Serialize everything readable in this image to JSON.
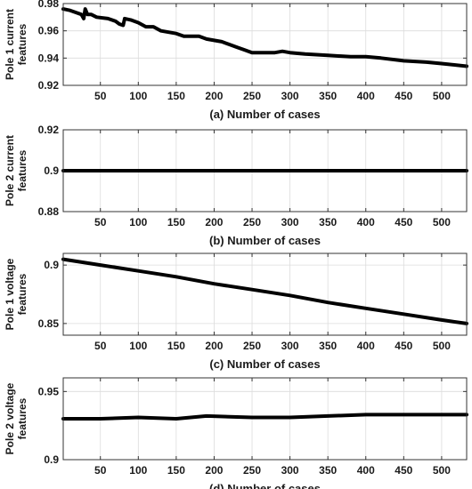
{
  "chart_data": [
    {
      "type": "line",
      "panel": "a",
      "xlabel": "(a) Number of cases",
      "ylabel": [
        "Pole 1 current",
        "features"
      ],
      "xlim": [
        1,
        533
      ],
      "ylim": [
        0.92,
        0.98
      ],
      "xticks": [
        50,
        100,
        150,
        200,
        250,
        300,
        350,
        400,
        450,
        500
      ],
      "yticks": [
        0.92,
        0.94,
        0.96,
        0.98
      ],
      "ytick_labels": [
        "0.92",
        "0.94",
        "0.96",
        "0.98"
      ],
      "grid": true,
      "series_color": "#000000",
      "x": [
        1,
        10,
        20,
        25,
        28,
        30,
        33,
        38,
        45,
        60,
        70,
        75,
        80,
        82,
        90,
        100,
        110,
        120,
        130,
        150,
        160,
        170,
        180,
        190,
        200,
        210,
        220,
        230,
        240,
        250,
        260,
        270,
        280,
        290,
        300,
        320,
        350,
        380,
        400,
        420,
        450,
        480,
        500,
        533
      ],
      "y": [
        0.976,
        0.975,
        0.973,
        0.972,
        0.969,
        0.976,
        0.972,
        0.972,
        0.97,
        0.969,
        0.967,
        0.965,
        0.964,
        0.969,
        0.968,
        0.966,
        0.963,
        0.963,
        0.96,
        0.958,
        0.956,
        0.956,
        0.956,
        0.954,
        0.953,
        0.952,
        0.95,
        0.948,
        0.946,
        0.944,
        0.944,
        0.944,
        0.944,
        0.945,
        0.944,
        0.943,
        0.942,
        0.941,
        0.941,
        0.94,
        0.938,
        0.937,
        0.936,
        0.934
      ]
    },
    {
      "type": "line",
      "panel": "b",
      "xlabel": "(b) Number of cases",
      "ylabel": [
        "Pole 2 current",
        "features"
      ],
      "xlim": [
        1,
        533
      ],
      "ylim": [
        0.88,
        0.92
      ],
      "xticks": [
        50,
        100,
        150,
        200,
        250,
        300,
        350,
        400,
        450,
        500
      ],
      "yticks": [
        0.88,
        0.9,
        0.92
      ],
      "ytick_labels": [
        "0.88",
        "0.9",
        "0.92"
      ],
      "grid": true,
      "series_color": "#000000",
      "x": [
        1,
        533
      ],
      "y": [
        0.9,
        0.9
      ]
    },
    {
      "type": "line",
      "panel": "c",
      "xlabel": "(c) Number of cases",
      "ylabel": [
        "Pole 1 voltage",
        "features"
      ],
      "xlim": [
        1,
        533
      ],
      "ylim": [
        0.84,
        0.91
      ],
      "xticks": [
        50,
        100,
        150,
        200,
        250,
        300,
        350,
        400,
        450,
        500
      ],
      "yticks": [
        0.85,
        0.9
      ],
      "ytick_labels": [
        "0.85",
        "0.9"
      ],
      "grid": true,
      "series_color": "#000000",
      "x": [
        1,
        50,
        100,
        150,
        200,
        250,
        300,
        350,
        400,
        450,
        500,
        533
      ],
      "y": [
        0.905,
        0.9,
        0.895,
        0.89,
        0.884,
        0.879,
        0.874,
        0.868,
        0.863,
        0.858,
        0.853,
        0.85
      ]
    },
    {
      "type": "line",
      "panel": "d",
      "xlabel": "(d) Number of cases",
      "ylabel": [
        "Pole 2 voltage",
        "features"
      ],
      "xlim": [
        1,
        533
      ],
      "ylim": [
        0.9,
        0.96
      ],
      "xticks": [
        50,
        100,
        150,
        200,
        250,
        300,
        350,
        400,
        450,
        500
      ],
      "yticks": [
        0.9,
        0.95
      ],
      "ytick_labels": [
        "0.9",
        "0.95"
      ],
      "grid": true,
      "series_color": "#000000",
      "x": [
        1,
        50,
        100,
        150,
        190,
        250,
        300,
        350,
        400,
        450,
        500,
        533
      ],
      "y": [
        0.93,
        0.93,
        0.931,
        0.93,
        0.932,
        0.931,
        0.931,
        0.932,
        0.933,
        0.933,
        0.933,
        0.933
      ]
    }
  ]
}
